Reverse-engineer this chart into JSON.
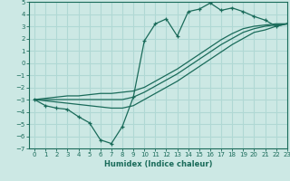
{
  "xlabel": "Humidex (Indice chaleur)",
  "background_color": "#cce8e4",
  "grid_color": "#b0d8d4",
  "line_color": "#1a6b5a",
  "x_data": [
    0,
    1,
    2,
    3,
    4,
    5,
    6,
    7,
    8,
    9,
    10,
    11,
    12,
    13,
    14,
    15,
    16,
    17,
    18,
    19,
    20,
    21,
    22,
    23
  ],
  "y_main": [
    -3.0,
    -3.5,
    -3.7,
    -3.8,
    -4.4,
    -4.9,
    -6.3,
    -6.6,
    -5.2,
    -2.8,
    1.8,
    3.2,
    3.6,
    2.2,
    4.2,
    4.4,
    4.9,
    4.3,
    4.5,
    4.2,
    3.8,
    3.5,
    3.0,
    3.2
  ],
  "y_line_upper": [
    -3.0,
    -2.9,
    -2.8,
    -2.7,
    -2.7,
    -2.6,
    -2.5,
    -2.5,
    -2.4,
    -2.3,
    -2.0,
    -1.5,
    -1.0,
    -0.5,
    0.1,
    0.7,
    1.3,
    1.9,
    2.4,
    2.8,
    3.0,
    3.1,
    3.2,
    3.2
  ],
  "y_line_mid": [
    -3.0,
    -3.0,
    -3.0,
    -3.0,
    -3.0,
    -3.0,
    -3.0,
    -3.0,
    -3.0,
    -2.8,
    -2.4,
    -1.9,
    -1.4,
    -0.9,
    -0.3,
    0.3,
    0.9,
    1.5,
    2.0,
    2.5,
    2.8,
    3.0,
    3.1,
    3.2
  ],
  "y_line_lower": [
    -3.0,
    -3.1,
    -3.2,
    -3.3,
    -3.4,
    -3.5,
    -3.6,
    -3.7,
    -3.7,
    -3.5,
    -3.0,
    -2.5,
    -2.0,
    -1.5,
    -0.9,
    -0.3,
    0.3,
    0.9,
    1.5,
    2.0,
    2.5,
    2.7,
    3.0,
    3.2
  ],
  "ylim": [
    -7,
    5
  ],
  "xlim": [
    -0.5,
    23
  ],
  "yticks": [
    -7,
    -6,
    -5,
    -4,
    -3,
    -2,
    -1,
    0,
    1,
    2,
    3,
    4,
    5
  ],
  "xticks": [
    0,
    1,
    2,
    3,
    4,
    5,
    6,
    7,
    8,
    9,
    10,
    11,
    12,
    13,
    14,
    15,
    16,
    17,
    18,
    19,
    20,
    21,
    22,
    23
  ]
}
